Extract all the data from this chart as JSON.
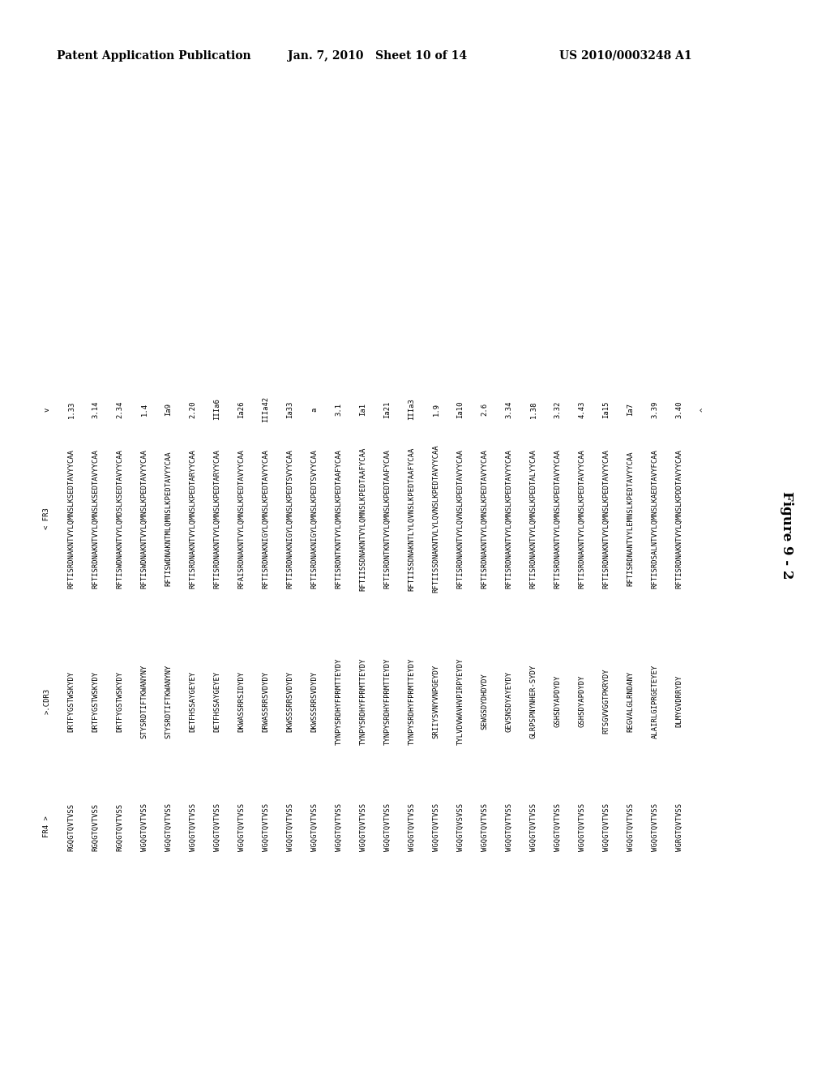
{
  "header_left": "Patent Application Publication",
  "header_mid": "Jan. 7, 2010   Sheet 10 of 14",
  "header_right": "US 2010/0003248 A1",
  "figure_label": "Figure 9 - 2",
  "background_color": "#ffffff",
  "sequences": [
    [
      "1.33",
      "RFTISRDNAKNTVYLQMNSLKSEDTAVYYCAA",
      "DRTFYGSTWSKYDY",
      "RGQGTQVTVSS"
    ],
    [
      "3.14",
      "RFTISRDNAKNTVYLQMNSLKSEDTAVYYCAA",
      "DRTFYGSTWSKYDY",
      "RGQGTQVTVSS"
    ],
    [
      "2.34",
      "RFTISWDNAKNTVYLQMDSLKSEDTAVYYCAA",
      "DRTFYGSTWSKYDY",
      "RGQGTQVTVSS"
    ],
    [
      "1.4",
      "RFTISWDNAKNTVYLQMNSLKPEDTAVYYCAA",
      "STYSRDTIFTKWANYNY",
      "WGQGTQVTVSS"
    ],
    [
      "Ia9",
      "RFTISWDNAKNTMLQMNSLKPEDTAVYYCAA",
      "STYSRDTIFTKWANYNY",
      "WGQGTQVTVSS"
    ],
    [
      "2.20",
      "RFTISRDNAKNTVYLQMNSLKPEDTARYYCAA",
      "DETFHSSAYGEYEY",
      "WGQGTQVTVSS"
    ],
    [
      "IIIa6",
      "RFTISRDNAKNTVYLQMNSLKPEDTARYYCAA",
      "DETFHSSAYGEYEY",
      "WGQGTQVTVSS"
    ],
    [
      "Ia26",
      "RFAISRDNAKNTVYLQMNSLKPEDTAVYYCAA",
      "DKWASSRRSIDYDY",
      "WGQGTQVTVSS"
    ],
    [
      "IIIa42",
      "RFTISRDNAKNIGYLQMNSLKPEDTAVYYCAA",
      "DRWASSRRSVDYDY",
      "WGQGTQVTVSS"
    ],
    [
      "Ia33",
      "RFTISRDNAKNIGYLQMNSLKPEDTSVYYCAA",
      "DKWSSSRRSVDYDY",
      "WGQGTQVTVSS"
    ],
    [
      "a",
      "RFTISRDNAKNIGYLQMNSLKPEDTSVYYCAA",
      "DKWSSSRRSVDYDY",
      "WGQGTQVTVSS"
    ],
    [
      "3.1",
      "RFTISRDNTKNTVYLQMNSLKPEDTAAFYCAA",
      "TYNPYSRDHYFPRMTTEYDY",
      "WGQGTQVTVSS"
    ],
    [
      "Ia1",
      "RFTIISSDNAKNTVYLQMNSLKPEDTAAFYCAA",
      "TYNPYSRDHYFPRMTTEYDY",
      "WGQGTQVTVSS"
    ],
    [
      "Ia21",
      "RFTISRDNTKNTVYLQMNSLKPEDTAAFYCAA",
      "TYNPYSRDHYFPRMTTEYDY",
      "WGQGTQVTVSS"
    ],
    [
      "IIIa3",
      "RFTIISSDNAKNTLYLQVNSLKPEDTAAFYCAA",
      "TYNPYSRDHYFPRMTTEYDY",
      "WGQGTQVTVSS"
    ],
    [
      "1.9",
      "RFTIISSDNAKNTVLYLQVNSLKPEDTAVYYCAA",
      "SRIIYSVNYVNPGEYDY",
      "WGQGTQVTVSS"
    ],
    [
      "Ia10",
      "RFTISRDNAKNTVYLQVNSLKPEDTAVYYCAA",
      "TYLVDVWAVHVPIRPYEYDY",
      "WGQGTQVSVSS"
    ],
    [
      "2.6",
      "RFTISRDNAKNTVYLQMNSLKPEDTAVYYCAA",
      "SEWGSDYDHDYDY",
      "WGQGTQVTVSS"
    ],
    [
      "3.34",
      "RFTISRDNAKNTVYLQMNSLKPEDTAVYYCAA",
      "GEVSNSDYAYEYDY",
      "WGQGTQVTVSS"
    ],
    [
      "1.38",
      "RFTISRDNAKNTVYLQMNSLKPEDTALYYCAA",
      "GLRPSPNYNHER-SYDY",
      "WGQGTQVTVSS"
    ],
    [
      "3.32",
      "RFTISRDNAKNTVYLQMNSLKPEDTAVYYCAA",
      "GSHSDYAPDYDY",
      "WGQGTQVTVSS"
    ],
    [
      "4.43",
      "RFTISRDNAKNTVYLQMNSLKPEDTAVYYCAA",
      "GSHSDYAPDYDY",
      "WGQGTQVTVSS"
    ],
    [
      "Ia15",
      "RFTISRDNAKNTVYLQMNSLKPEDTAVYYCAA",
      "RTSGVVGGTPKRYDY",
      "WGQGTQVTVSS"
    ],
    [
      "Ia7",
      "RFTISRDNANTVYLEMNSLKPEDTAVYYCAA",
      "REGVALGLRNDANY",
      "WGQGTQVTVSS"
    ],
    [
      "3.39",
      "RFTISRDSALNTVYLQMNSLKAEDTAVYFCAA",
      "ALAIRLGIPRGETEYEY",
      "WGQGTQVTVSS"
    ],
    [
      "3.40",
      "RFTISRDNAKNTVYLQMNSLKPDDTAVYYCAA",
      "DLMYGVDRRYDY",
      "WGRGTQVTVSS"
    ]
  ],
  "col_headers": [
    "< FR3",
    ">.CDR3",
    "FR4 >"
  ],
  "row_header_marker_left": "v",
  "row_header_marker_right": "^"
}
